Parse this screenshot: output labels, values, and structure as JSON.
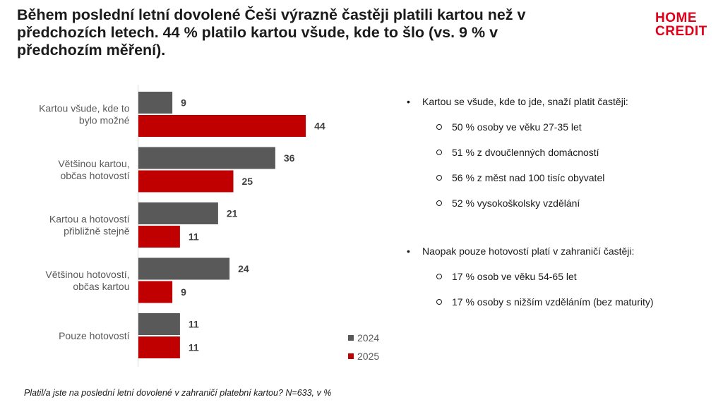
{
  "title": "Během poslední letní dovolené Češi výrazně častěji platili kartou než v předchozích letech. 44 % platilo kartou všude, kde to šlo (vs. 9 % v předchozím měření).",
  "logo": {
    "line1": "HOME",
    "line2": "CREDIT"
  },
  "chart_data": {
    "type": "bar",
    "orientation": "horizontal",
    "categories": [
      [
        "Kartou všude, kde to",
        "bylo možné"
      ],
      [
        "Většinou kartou,",
        "občas hotovostí"
      ],
      [
        "Kartou a hotovostí",
        "přibližně stejně"
      ],
      [
        "Většinou hotovostí,",
        "občas kartou"
      ],
      [
        "Pouze hotovostí"
      ]
    ],
    "series": [
      {
        "name": "2024",
        "color": "#595959",
        "values": [
          9,
          36,
          21,
          24,
          11
        ]
      },
      {
        "name": "2025",
        "color": "#c00000",
        "values": [
          44,
          25,
          11,
          9,
          11
        ]
      }
    ],
    "xlim": [
      0,
      50
    ],
    "grid": false,
    "legend": "bottom-right"
  },
  "notes": [
    {
      "text": "Kartou se všude, kde to jde, snaží platit častěji:",
      "items": [
        "50 % osoby ve věku 27-35 let",
        "51 % z dvoučlenných domácností",
        "56 % z měst nad 100 tisíc obyvatel",
        "52 % vysokoškolsky vzdělání"
      ]
    },
    {
      "text": "Naopak pouze hotovostí platí v zahraničí častěji:",
      "items": [
        "17 % osob ve věku 54-65 let",
        "17 % osoby s nižším vzděláním (bez maturity)"
      ]
    }
  ],
  "footnote": "Platil/a jste na poslední letní dovolené v zahraničí platební kartou? N=633, v %"
}
